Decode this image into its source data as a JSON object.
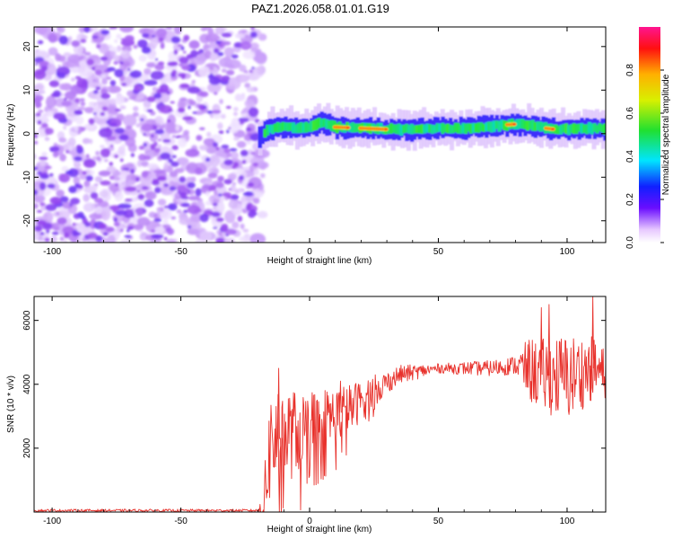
{
  "figure_title": "PAZ1.2026.058.01.01.G19",
  "chart_data": [
    {
      "type": "heatmap",
      "title": "PAZ1.2026.058.01.01.G19",
      "xlabel": "Height of straight line (km)",
      "ylabel": "Frequency (Hz)",
      "xlim": [
        -107,
        115
      ],
      "ylim": [
        -25,
        24.5
      ],
      "xticks": [
        -100,
        -50,
        0,
        50,
        100
      ],
      "yticks": [
        -20,
        -10,
        0,
        10,
        20
      ],
      "noise_region_x": [
        -107,
        -20
      ],
      "signal_band": {
        "center_hz": [
          {
            "x": -20,
            "y": -1
          },
          {
            "x": -17,
            "y": 1
          },
          {
            "x": -10,
            "y": 1.5
          },
          {
            "x": -3,
            "y": 1.2
          },
          {
            "x": 4,
            "y": 2.5
          },
          {
            "x": 10,
            "y": 1.5
          },
          {
            "x": 30,
            "y": 1.0
          },
          {
            "x": 60,
            "y": 1.2
          },
          {
            "x": 80,
            "y": 2.2
          },
          {
            "x": 95,
            "y": 1.0
          },
          {
            "x": 115,
            "y": 1.3
          }
        ],
        "peak_segments": [
          {
            "x_start": 10,
            "x_end": 15
          },
          {
            "x_start": 20,
            "x_end": 30
          },
          {
            "x_start": 77,
            "x_end": 80
          },
          {
            "x_start": 92,
            "x_end": 95
          }
        ]
      },
      "colorbar": {
        "label": "Normalized spectral amplitude",
        "range": [
          0.0,
          1.0
        ],
        "ticks": [
          "0.0",
          "0.2",
          "0.4",
          "0.6",
          "0.8"
        ],
        "tick_values": [
          0.0,
          0.2,
          0.4,
          0.6,
          0.8
        ]
      }
    },
    {
      "type": "line",
      "xlabel": "Height of straight line (km)",
      "ylabel": "SNR (10 * v/v)",
      "xlim": [
        -107,
        115
      ],
      "ylim": [
        0,
        6750
      ],
      "xticks": [
        -100,
        -50,
        0,
        50,
        100
      ],
      "yticks": [
        2000,
        4000,
        6000
      ],
      "series": [
        {
          "name": "SNR",
          "color": "#e8322c",
          "profile": [
            {
              "x": -107,
              "y": 50
            },
            {
              "x": -20,
              "y": 50
            },
            {
              "x": -18,
              "y": 100
            },
            {
              "x": -15,
              "y": 2200
            },
            {
              "x": -5,
              "y": 2500
            },
            {
              "x": 5,
              "y": 2900
            },
            {
              "x": 15,
              "y": 3200
            },
            {
              "x": 25,
              "y": 3800
            },
            {
              "x": 35,
              "y": 4300
            },
            {
              "x": 50,
              "y": 4500
            },
            {
              "x": 70,
              "y": 4500
            },
            {
              "x": 80,
              "y": 4600
            },
            {
              "x": 90,
              "y": 4300
            },
            {
              "x": 100,
              "y": 4200
            },
            {
              "x": 110,
              "y": 4500
            },
            {
              "x": 115,
              "y": 4300
            }
          ],
          "spread": [
            {
              "x": -107,
              "y": 40
            },
            {
              "x": -20,
              "y": 40
            },
            {
              "x": -15,
              "y": 1800
            },
            {
              "x": 0,
              "y": 1100
            },
            {
              "x": 15,
              "y": 800
            },
            {
              "x": 30,
              "y": 350
            },
            {
              "x": 50,
              "y": 150
            },
            {
              "x": 80,
              "y": 300
            },
            {
              "x": 85,
              "y": 1000
            },
            {
              "x": 100,
              "y": 1400
            },
            {
              "x": 115,
              "y": 800
            }
          ],
          "spikes": [
            {
              "x": -12,
              "y": 4500
            },
            {
              "x": -11,
              "y": 350
            },
            {
              "x": 12,
              "y": 4100
            },
            {
              "x": 90,
              "y": 6400
            },
            {
              "x": 93,
              "y": 6500
            },
            {
              "x": 110,
              "y": 6750
            },
            {
              "x": 109,
              "y": 3500
            }
          ]
        }
      ]
    }
  ]
}
